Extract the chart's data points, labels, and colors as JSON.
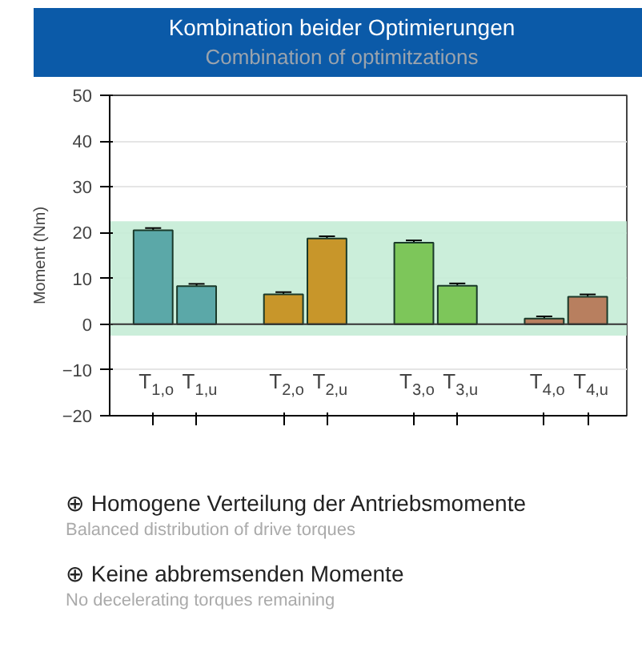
{
  "chart_data": {
    "type": "bar",
    "title": "Kombination beider Optimierungen",
    "subtitle": "Combination of optimitzations",
    "ylabel": "Moment (Nm)",
    "categories": [
      "T$_{1,o}$",
      "T$_{1,u}$",
      "T$_{2,o}$",
      "T$_{2,u}$",
      "T$_{3,o}$",
      "T$_{3,u}$",
      "T$_{4,o}$",
      "T$_{4,u}$"
    ],
    "values": [
      20.5,
      8.3,
      6.5,
      18.7,
      17.8,
      8.4,
      1.2,
      6.0
    ],
    "errors": [
      0.5,
      0.5,
      0.5,
      0.5,
      0.5,
      0.5,
      0.5,
      0.5
    ],
    "colors": [
      "#5ba8a8",
      "#5ba8a8",
      "#c8962a",
      "#c8962a",
      "#7dc65a",
      "#7dc65a",
      "#b87f5f",
      "#b87f5f"
    ],
    "ylim": [
      -20,
      50
    ],
    "yticks": [
      -20,
      -10,
      0,
      10,
      20,
      30,
      40,
      50
    ],
    "grid": "y",
    "bands": [
      {
        "axis": "y",
        "from": -2.5,
        "to": 22.5,
        "color": "#c5ecd6"
      }
    ],
    "annotations": [
      "⊕ Homogene Verteilung der Antriebsmomente",
      "Balanced distribution of drive torques",
      "⊕ Keine abbremsenden Momente",
      "No decelerating torques remaining"
    ]
  }
}
